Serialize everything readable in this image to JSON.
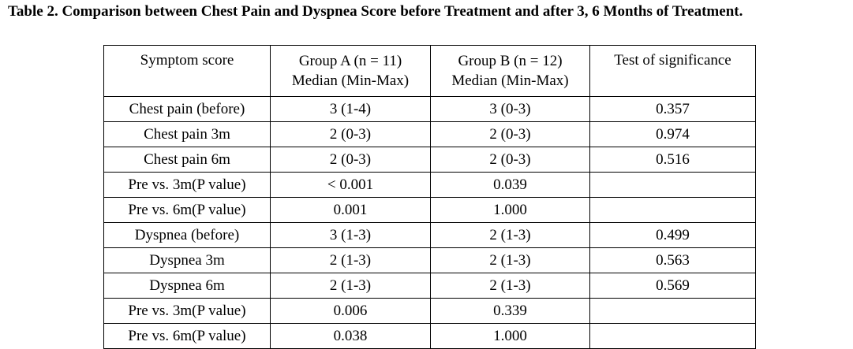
{
  "caption": "Table 2. Comparison between Chest Pain and Dyspnea Score before Treatment and after 3, 6 Months of Treatment.",
  "table": {
    "headers": {
      "symptom": "Symptom score",
      "group_a_line1": "Group A (n = 11)",
      "group_a_line2": "Median (Min-Max)",
      "group_b_line1": "Group B (n = 12)",
      "group_b_line2": "Median (Min-Max)",
      "significance": "Test of significance"
    },
    "rows": [
      {
        "symptom": "Chest pain (before)",
        "group_a": "3 (1-4)",
        "group_b": "3 (0-3)",
        "significance": "0.357"
      },
      {
        "symptom": "Chest pain 3m",
        "group_a": "2 (0-3)",
        "group_b": "2 (0-3)",
        "significance": "0.974"
      },
      {
        "symptom": "Chest pain 6m",
        "group_a": "2 (0-3)",
        "group_b": "2 (0-3)",
        "significance": "0.516"
      },
      {
        "symptom": "Pre vs. 3m(P value)",
        "group_a": "< 0.001",
        "group_b": "0.039",
        "significance": ""
      },
      {
        "symptom": "Pre vs. 6m(P value)",
        "group_a": "0.001",
        "group_b": "1.000",
        "significance": ""
      },
      {
        "symptom": "Dyspnea (before)",
        "group_a": "3 (1-3)",
        "group_b": "2 (1-3)",
        "significance": "0.499"
      },
      {
        "symptom": "Dyspnea 3m",
        "group_a": "2 (1-3)",
        "group_b": "2 (1-3)",
        "significance": "0.563"
      },
      {
        "symptom": "Dyspnea 6m",
        "group_a": "2 (1-3)",
        "group_b": "2 (1-3)",
        "significance": "0.569"
      },
      {
        "symptom": "Pre vs. 3m(P value)",
        "group_a": "0.006",
        "group_b": "0.339",
        "significance": ""
      },
      {
        "symptom": "Pre vs. 6m(P value)",
        "group_a": "0.038",
        "group_b": "1.000",
        "significance": ""
      }
    ]
  }
}
